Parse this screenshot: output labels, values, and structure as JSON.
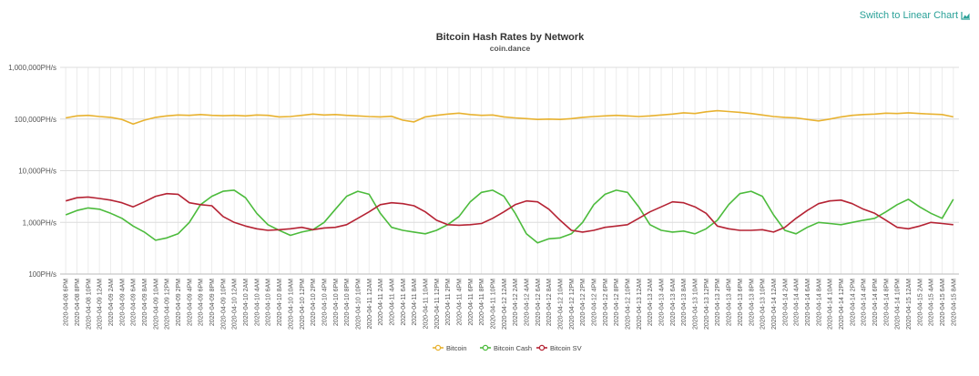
{
  "toolbar": {
    "switch_label": "Switch to Linear Chart",
    "switch_icon": "area-chart-icon"
  },
  "chart_data": {
    "type": "line",
    "title": "Bitcoin Hash Rates by Network",
    "subtitle": "coin.dance",
    "xlabel": "",
    "ylabel": "",
    "y_scale": "log",
    "ylim": [
      100,
      1000000
    ],
    "y_ticks": [
      "100PH/s",
      "1,000PH/s",
      "10,000PH/s",
      "100,000PH/s",
      "1,000,000PH/s"
    ],
    "grid": true,
    "legend_position": "bottom-center",
    "x": [
      "2020-04-08 6PM",
      "2020-04-08 8PM",
      "2020-04-08 10PM",
      "2020-04-09 12AM",
      "2020-04-09 2AM",
      "2020-04-09 4AM",
      "2020-04-09 6AM",
      "2020-04-09 8AM",
      "2020-04-09 10AM",
      "2020-04-09 12PM",
      "2020-04-09 2PM",
      "2020-04-09 4PM",
      "2020-04-09 6PM",
      "2020-04-09 8PM",
      "2020-04-09 10PM",
      "2020-04-10 12AM",
      "2020-04-10 2AM",
      "2020-04-10 4AM",
      "2020-04-10 6AM",
      "2020-04-10 8AM",
      "2020-04-10 10AM",
      "2020-04-10 12PM",
      "2020-04-10 2PM",
      "2020-04-10 4PM",
      "2020-04-10 6PM",
      "2020-04-10 8PM",
      "2020-04-10 10PM",
      "2020-04-11 12AM",
      "2020-04-11 2AM",
      "2020-04-11 4AM",
      "2020-04-11 6AM",
      "2020-04-11 8AM",
      "2020-04-11 10AM",
      "2020-04-11 12PM",
      "2020-04-11 2PM",
      "2020-04-11 4PM",
      "2020-04-11 6PM",
      "2020-04-11 8PM",
      "2020-04-11 10PM",
      "2020-04-12 12AM",
      "2020-04-12 2AM",
      "2020-04-12 4AM",
      "2020-04-12 6AM",
      "2020-04-12 8AM",
      "2020-04-12 10AM",
      "2020-04-12 12PM",
      "2020-04-12 2PM",
      "2020-04-12 4PM",
      "2020-04-12 6PM",
      "2020-04-12 8PM",
      "2020-04-12 10PM",
      "2020-04-13 12AM",
      "2020-04-13 2AM",
      "2020-04-13 4AM",
      "2020-04-13 6AM",
      "2020-04-13 8AM",
      "2020-04-13 10AM",
      "2020-04-13 12PM",
      "2020-04-13 2PM",
      "2020-04-13 4PM",
      "2020-04-13 6PM",
      "2020-04-13 8PM",
      "2020-04-13 10PM",
      "2020-04-14 12AM",
      "2020-04-14 2AM",
      "2020-04-14 4AM",
      "2020-04-14 6AM",
      "2020-04-14 8AM",
      "2020-04-14 10AM",
      "2020-04-14 12PM",
      "2020-04-14 2PM",
      "2020-04-14 4PM",
      "2020-04-14 6PM",
      "2020-04-14 8PM",
      "2020-04-14 10PM",
      "2020-04-15 12AM",
      "2020-04-15 2AM",
      "2020-04-15 4AM",
      "2020-04-15 6AM",
      "2020-04-15 8AM"
    ],
    "series": [
      {
        "name": "Bitcoin",
        "color": "#e8b230",
        "values": [
          105000,
          115000,
          118000,
          112000,
          108000,
          98000,
          80000,
          95000,
          108000,
          115000,
          120000,
          118000,
          122000,
          118000,
          116000,
          118000,
          115000,
          120000,
          118000,
          110000,
          112000,
          118000,
          125000,
          120000,
          122000,
          118000,
          115000,
          112000,
          110000,
          113000,
          95000,
          88000,
          110000,
          118000,
          125000,
          130000,
          122000,
          118000,
          120000,
          110000,
          105000,
          102000,
          98000,
          100000,
          98000,
          102000,
          108000,
          112000,
          115000,
          118000,
          115000,
          112000,
          115000,
          120000,
          125000,
          132000,
          128000,
          138000,
          145000,
          140000,
          135000,
          128000,
          120000,
          112000,
          108000,
          105000,
          98000,
          92000,
          100000,
          110000,
          118000,
          122000,
          125000,
          130000,
          128000,
          132000,
          128000,
          125000,
          122000,
          110000
        ]
      },
      {
        "name": "Bitcoin Cash",
        "color": "#4cbb3c",
        "values": [
          1400,
          1700,
          1900,
          1800,
          1500,
          1200,
          850,
          650,
          450,
          500,
          600,
          1000,
          2200,
          3200,
          4000,
          4200,
          3000,
          1500,
          900,
          700,
          560,
          650,
          720,
          1000,
          1800,
          3200,
          4000,
          3500,
          1500,
          800,
          700,
          650,
          600,
          700,
          900,
          1300,
          2500,
          3800,
          4200,
          3200,
          1500,
          600,
          400,
          480,
          500,
          600,
          1000,
          2200,
          3500,
          4200,
          3800,
          2000,
          900,
          700,
          650,
          680,
          600,
          750,
          1100,
          2200,
          3600,
          4000,
          3200,
          1400,
          700,
          600,
          800,
          1000,
          950,
          900,
          1000,
          1100,
          1200,
          1600,
          2200,
          2800,
          2000,
          1500,
          1200,
          2800
        ]
      },
      {
        "name": "Bitcoin SV",
        "color": "#b52334",
        "values": [
          2600,
          3000,
          3100,
          2900,
          2700,
          2400,
          2000,
          2500,
          3200,
          3600,
          3500,
          2400,
          2200,
          2100,
          1300,
          1000,
          850,
          750,
          700,
          720,
          750,
          800,
          720,
          780,
          800,
          900,
          1200,
          1600,
          2200,
          2400,
          2300,
          2100,
          1600,
          1100,
          900,
          880,
          900,
          950,
          1200,
          1600,
          2200,
          2600,
          2500,
          1800,
          1100,
          700,
          650,
          700,
          800,
          850,
          900,
          1200,
          1600,
          2000,
          2500,
          2400,
          2000,
          1500,
          850,
          750,
          700,
          700,
          720,
          650,
          800,
          1200,
          1700,
          2300,
          2600,
          2700,
          2300,
          1800,
          1500,
          1100,
          800,
          750,
          850,
          1000,
          950,
          900
        ]
      }
    ]
  }
}
